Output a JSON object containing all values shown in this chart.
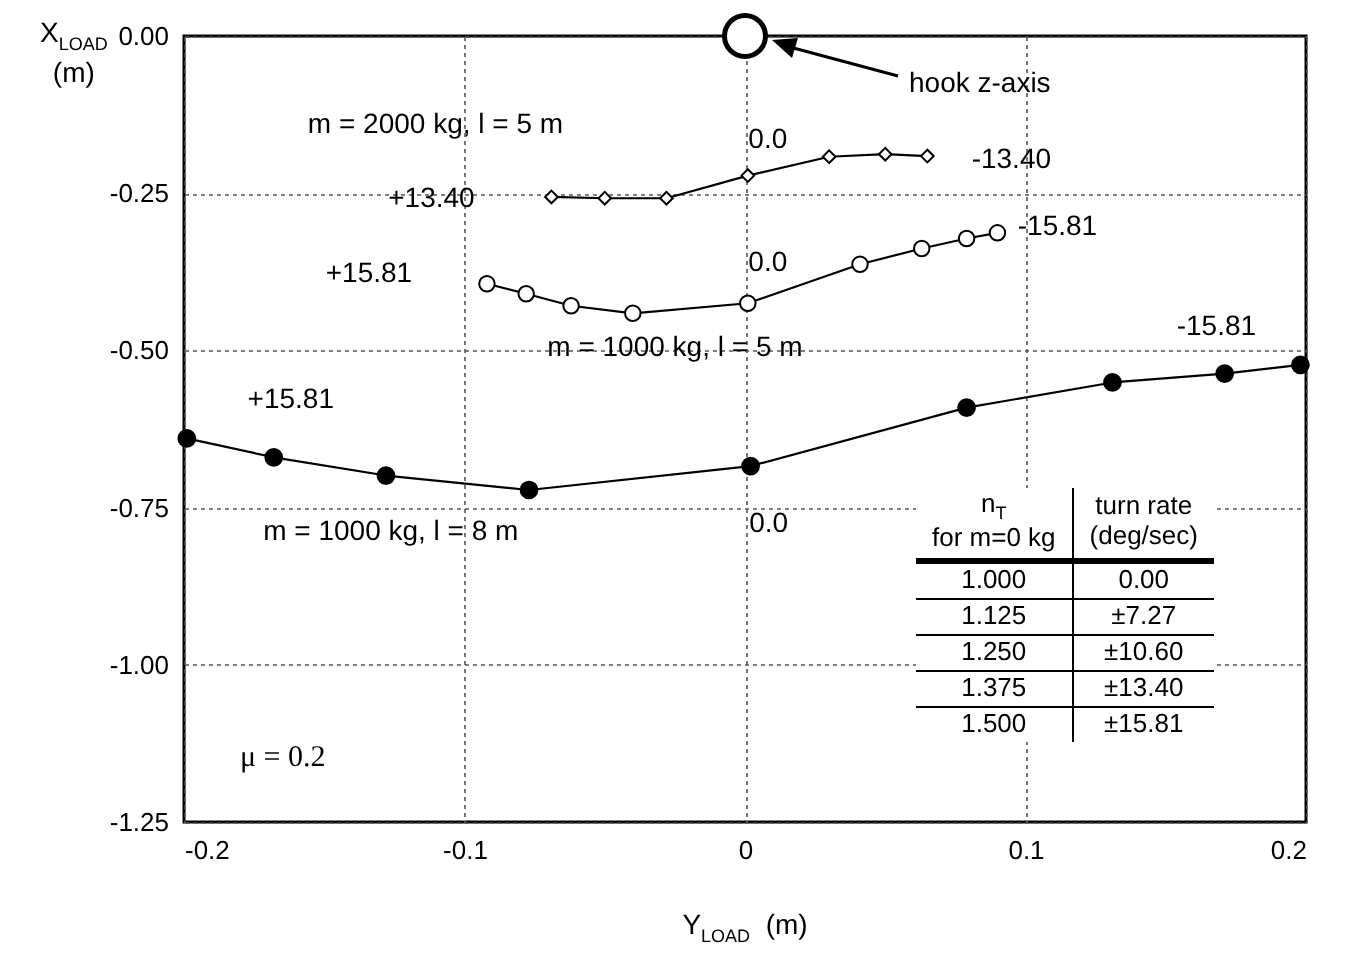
{
  "chart_data": {
    "type": "line",
    "xlabel": "Y$_{LOAD}$  (m)",
    "ylabel": "X$_{LOAD}$\n(m)",
    "xlim": [
      -0.2,
      0.2
    ],
    "xticks": [
      {
        "value": -0.2,
        "label": "-0.2"
      },
      {
        "value": -0.1,
        "label": "-0.1"
      },
      0,
      0.1,
      0.2
    ],
    "ylim": [
      -1.25,
      0
    ],
    "yticks": [
      {
        "value": 0,
        "label": "0.00"
      },
      {
        "value": -0.25,
        "label": "-0.25"
      },
      {
        "value": -0.5,
        "label": "-0.50"
      },
      {
        "value": -0.75,
        "label": "-0.75"
      },
      {
        "value": -1,
        "label": "-1.00"
      },
      {
        "value": -1.25,
        "label": "-1.25"
      }
    ],
    "grid": true,
    "line_style": "solid",
    "series": [
      {
        "name": "m = 2000 kg, l = 5 m",
        "color": "#000000",
        "marker": "diamond",
        "x": [
          -0.069,
          -0.05,
          -0.028,
          0.001,
          0.03,
          0.05,
          0.065
        ],
        "values": [
          -0.256,
          -0.258,
          -0.258,
          -0.222,
          -0.192,
          -0.188,
          -0.191
        ]
      },
      {
        "name": "m = 1000 kg, l = 5 m",
        "color": "#000000",
        "marker": "circle",
        "x": [
          -0.092,
          -0.078,
          -0.062,
          -0.04,
          0.001,
          0.041,
          0.063,
          0.079,
          0.09
        ],
        "values": [
          -0.394,
          -0.41,
          -0.429,
          -0.441,
          -0.425,
          -0.363,
          -0.338,
          -0.322,
          -0.313
        ]
      },
      {
        "name": "m = 1000 kg, l = 8 m",
        "color": "#000000",
        "marker": "circle",
        "x": [
          -0.199,
          -0.168,
          -0.128,
          -0.077,
          0.002,
          0.079,
          0.131,
          0.171,
          0.198
        ],
        "values": [
          -0.64,
          -0.67,
          -0.699,
          -0.722,
          -0.684,
          -0.591,
          -0.551,
          -0.537,
          -0.523
        ]
      },
      {
        "type": "scatter",
        "color": "#000000",
        "marker": "circle",
        "x": [
          0
        ],
        "values": [
          0
        ]
      }
    ],
    "annotations": [
      "hook z-axis",
      {
        "text": "0.0",
        "x": 0.001,
        "y": -0.222
      },
      {
        "text": "-13.40",
        "x": 0.065,
        "y": -0.191
      },
      {
        "text": "+13.40",
        "x": -0.069,
        "y": -0.256
      },
      {
        "text": "+15.81",
        "x": -0.092,
        "y": -0.394
      },
      {
        "text": "0.0",
        "x": 0.001,
        "y": -0.425
      },
      {
        "text": "-15.81",
        "x": 0.09,
        "y": -0.313
      },
      {
        "text": "+15.81",
        "x": -0.199,
        "y": -0.64
      },
      {
        "text": "-15.81",
        "x": 0.198,
        "y": -0.523
      },
      {
        "text": "0.0",
        "x": 0.002,
        "y": -0.684
      },
      "μ = 0.2",
      "n$_{T}$\nfor m=0 kg",
      "turn rate\n(deg/sec)",
      "1.000",
      "0.00",
      "1.125",
      "±7.27",
      "1.250",
      "±10.60",
      "1.375",
      "±13.40",
      "1.500",
      "±15.81"
    ]
  }
}
